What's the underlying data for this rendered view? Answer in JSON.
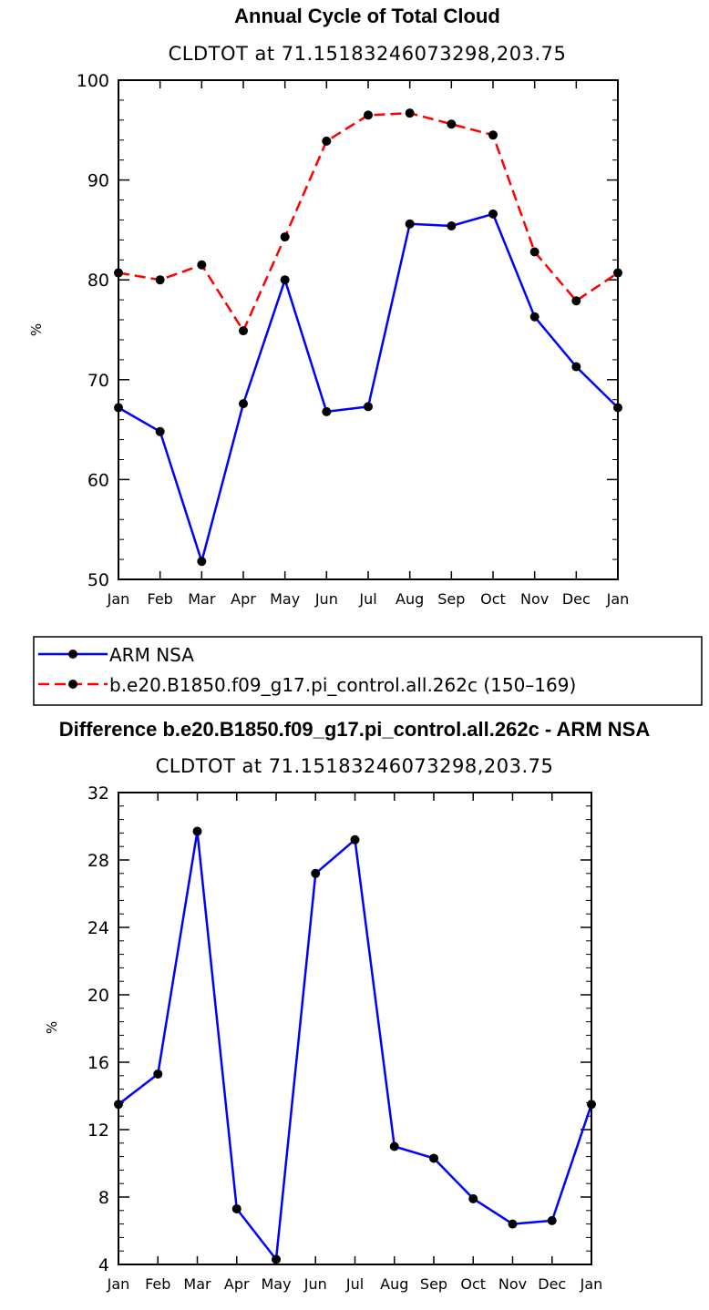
{
  "colors": {
    "model": "#ff0000",
    "obs": "#0000ff",
    "marker": "#000000",
    "axis": "#000000"
  },
  "chart_data": [
    {
      "type": "line",
      "title": "Annual Cycle of Total Cloud",
      "subtitle": "CLDTOT at 71.15183246073298,203.75",
      "xlabel": "",
      "ylabel": "%",
      "categories": [
        "Jan",
        "Feb",
        "Mar",
        "Apr",
        "May",
        "Jun",
        "Jul",
        "Aug",
        "Sep",
        "Oct",
        "Nov",
        "Dec",
        "Jan"
      ],
      "ylim": [
        50,
        100
      ],
      "yticks": [
        50,
        60,
        70,
        80,
        90,
        100
      ],
      "yticklabels": [
        "50",
        "60",
        "70",
        "80",
        "90",
        "100"
      ],
      "series": [
        {
          "name": "ARM NSA",
          "color": "#0000ff",
          "dash": "solid",
          "values": [
            67.2,
            64.8,
            51.8,
            67.6,
            80.0,
            66.8,
            67.3,
            85.6,
            85.4,
            86.6,
            76.3,
            71.3,
            67.2
          ]
        },
        {
          "name": "b.e20.B1850.f09_g17.pi_control.all.262c (150–169)",
          "color": "#ff0000",
          "dash": "dashed",
          "values": [
            80.7,
            80.0,
            81.5,
            74.9,
            84.3,
            93.9,
            96.5,
            96.7,
            95.6,
            94.5,
            82.8,
            77.9,
            80.7
          ]
        }
      ],
      "legend": [
        "ARM NSA",
        "b.e20.B1850.f09_g17.pi_control.all.262c (150–169)"
      ]
    },
    {
      "type": "line",
      "title": "Difference b.e20.B1850.f09_g17.pi_control.all.262c - ARM NSA",
      "subtitle": "CLDTOT at 71.15183246073298,203.75",
      "xlabel": "",
      "ylabel": "%",
      "categories": [
        "Jan",
        "Feb",
        "Mar",
        "Apr",
        "May",
        "Jun",
        "Jul",
        "Aug",
        "Sep",
        "Oct",
        "Nov",
        "Dec",
        "Jan"
      ],
      "ylim": [
        4,
        32
      ],
      "yticks": [
        4,
        8,
        12,
        16,
        20,
        24,
        28,
        32
      ],
      "yticklabels": [
        "4",
        "8",
        "12",
        "16",
        "20",
        "24",
        "28",
        "32"
      ],
      "series": [
        {
          "name": "Difference",
          "color": "#0000ff",
          "dash": "solid",
          "values": [
            13.5,
            15.3,
            29.7,
            7.3,
            4.3,
            27.2,
            29.2,
            11.0,
            10.3,
            7.9,
            6.4,
            6.6,
            13.5
          ]
        }
      ]
    }
  ]
}
